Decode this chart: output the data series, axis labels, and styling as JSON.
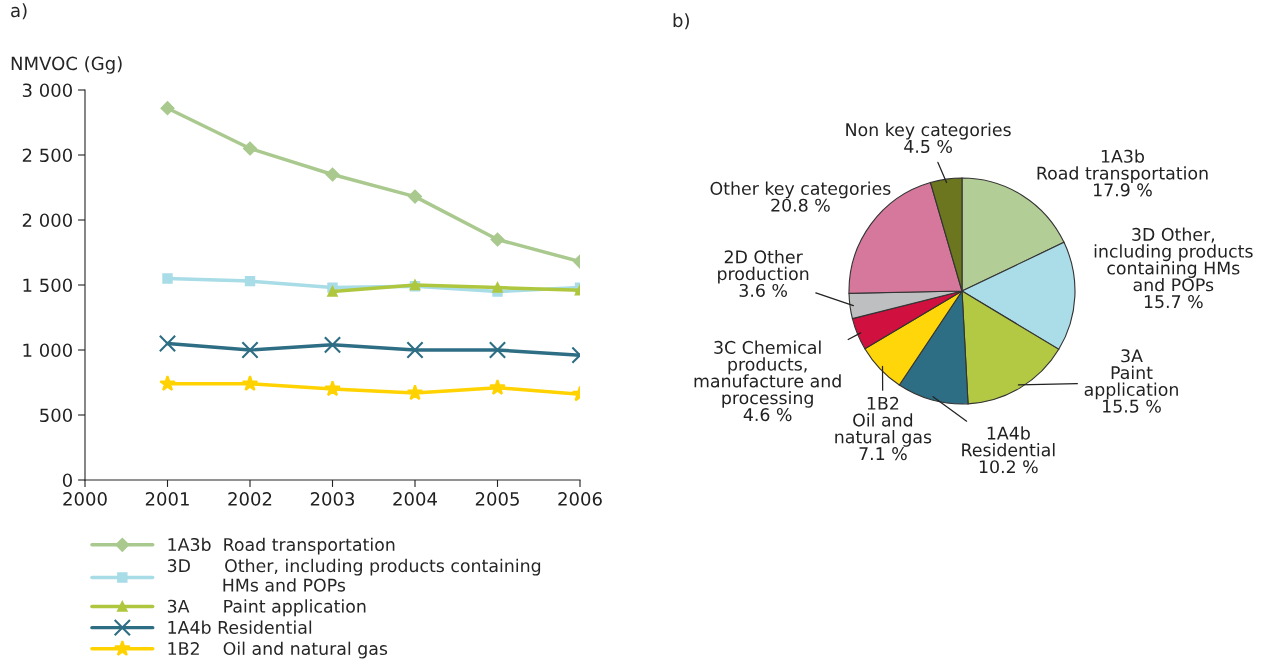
{
  "chart_data": [
    {
      "type": "line",
      "title": "a)",
      "ylabel": "NMVOC (Gg)",
      "x": [
        2001,
        2002,
        2003,
        2004,
        2005,
        2006
      ],
      "xlim": [
        2000,
        2006
      ],
      "xticks": [
        2000,
        2001,
        2002,
        2003,
        2004,
        2005,
        2006
      ],
      "ylim": [
        0,
        3000
      ],
      "yticks": [
        0,
        500,
        {
          "value": 1000,
          "label": "1 000"
        },
        {
          "value": 1500,
          "label": "1 500"
        },
        {
          "value": 2000,
          "label": "2 000"
        },
        {
          "value": 2500,
          "label": "2 500"
        },
        {
          "value": 3000,
          "label": "3 000"
        }
      ],
      "grid": false,
      "legend": "bottom",
      "series": [
        {
          "name": "1A3b  Road transportation",
          "color": "#a9c98e",
          "marker": "diamond",
          "values": [
            2860,
            2550,
            2350,
            2180,
            1850,
            1680
          ]
        },
        {
          "name": "3D      Other, including products containing\n          HMs and POPs",
          "color": "#a8dce6",
          "marker": "square",
          "values": [
            1550,
            1530,
            1480,
            1490,
            1450,
            1480
          ]
        },
        {
          "name": "3A      Paint application",
          "color": "#afc73e",
          "marker": "triangle",
          "values": [
            null,
            null,
            1450,
            1500,
            1480,
            1460
          ]
        },
        {
          "name": "1A4b Residential",
          "color": "#2e6e84",
          "marker": "cross",
          "values": [
            1050,
            1000,
            1040,
            1000,
            1000,
            960
          ]
        },
        {
          "name": "1B2    Oil and natural gas",
          "color": "#ffd200",
          "marker": "star",
          "values": [
            740,
            740,
            700,
            670,
            710,
            660
          ]
        }
      ]
    },
    {
      "type": "pie",
      "title": "b)",
      "categories": [
        "1A3b\nRoad transportation",
        "3D Other,\nincluding products\ncontaining HMs\nand POPs",
        "3A\nPaint\napplication",
        "1A4b\nResidential",
        "1B2\nOil and\nnatural gas",
        "3C Chemical\nproducts,\nmanufacture and\nprocessing",
        "2D Other\nproduction",
        "Other key categories",
        "Non key categories"
      ],
      "values": [
        17.9,
        15.7,
        15.5,
        10.2,
        7.1,
        4.6,
        3.6,
        20.8,
        4.5
      ],
      "value_labels": [
        "17.9 %",
        "15.7 %",
        "15.5 %",
        "10.2 %",
        "7.1 %",
        "4.6 %",
        "3.6 %",
        "20.8 %",
        "4.5 %"
      ],
      "colors": [
        "#b3cd96",
        "#aadde8",
        "#b3c943",
        "#2e6e84",
        "#ffd60a",
        "#d0103e",
        "#bdbfc1",
        "#d5789b",
        "#6b761e"
      ]
    }
  ]
}
